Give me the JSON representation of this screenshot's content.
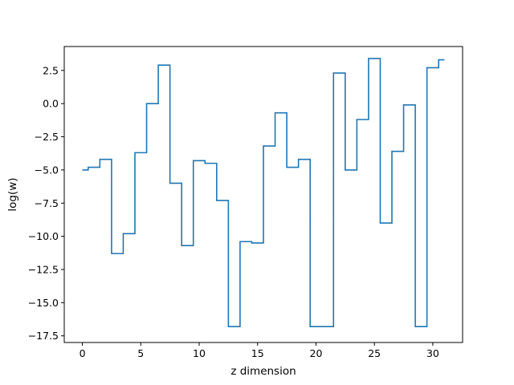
{
  "chart_data": {
    "type": "line",
    "drawstyle": "steps-mid",
    "title": "",
    "xlabel": "z dimension",
    "ylabel": "log(w)",
    "xlim": [
      -1.55,
      32.55
    ],
    "ylim": [
      -18.0,
      4.3
    ],
    "xticks": [
      0,
      5,
      10,
      15,
      20,
      25,
      30
    ],
    "xtick_labels": [
      "0",
      "5",
      "10",
      "15",
      "20",
      "25",
      "30"
    ],
    "yticks": [
      2.5,
      0.0,
      -2.5,
      -5.0,
      -7.5,
      -10.0,
      -12.5,
      -15.0,
      -17.5
    ],
    "ytick_labels": [
      "2.5",
      "0.0",
      "−2.5",
      "−5.0",
      "−7.5",
      "−10.0",
      "−12.5",
      "−15.0",
      "−17.5"
    ],
    "grid": false,
    "line_color": "#1f77b4",
    "series": [
      {
        "x": [
          0,
          1,
          2,
          3,
          4,
          5,
          6,
          7,
          8,
          9,
          10,
          11,
          12,
          13,
          14,
          15,
          16,
          17,
          18,
          19,
          20,
          21,
          22,
          23,
          24,
          25,
          26,
          27,
          28,
          29,
          30,
          31
        ],
        "values": [
          -5.0,
          -4.8,
          -4.2,
          -11.3,
          -9.8,
          -3.7,
          0.0,
          2.9,
          -6.0,
          -10.7,
          -4.3,
          -4.5,
          -7.3,
          -16.8,
          -10.4,
          -10.5,
          -3.2,
          -0.7,
          -4.8,
          -4.2,
          -16.8,
          -16.8,
          2.3,
          -5.0,
          -1.2,
          3.4,
          -9.0,
          -3.6,
          -0.1,
          -16.8,
          2.7,
          3.3
        ]
      }
    ]
  }
}
